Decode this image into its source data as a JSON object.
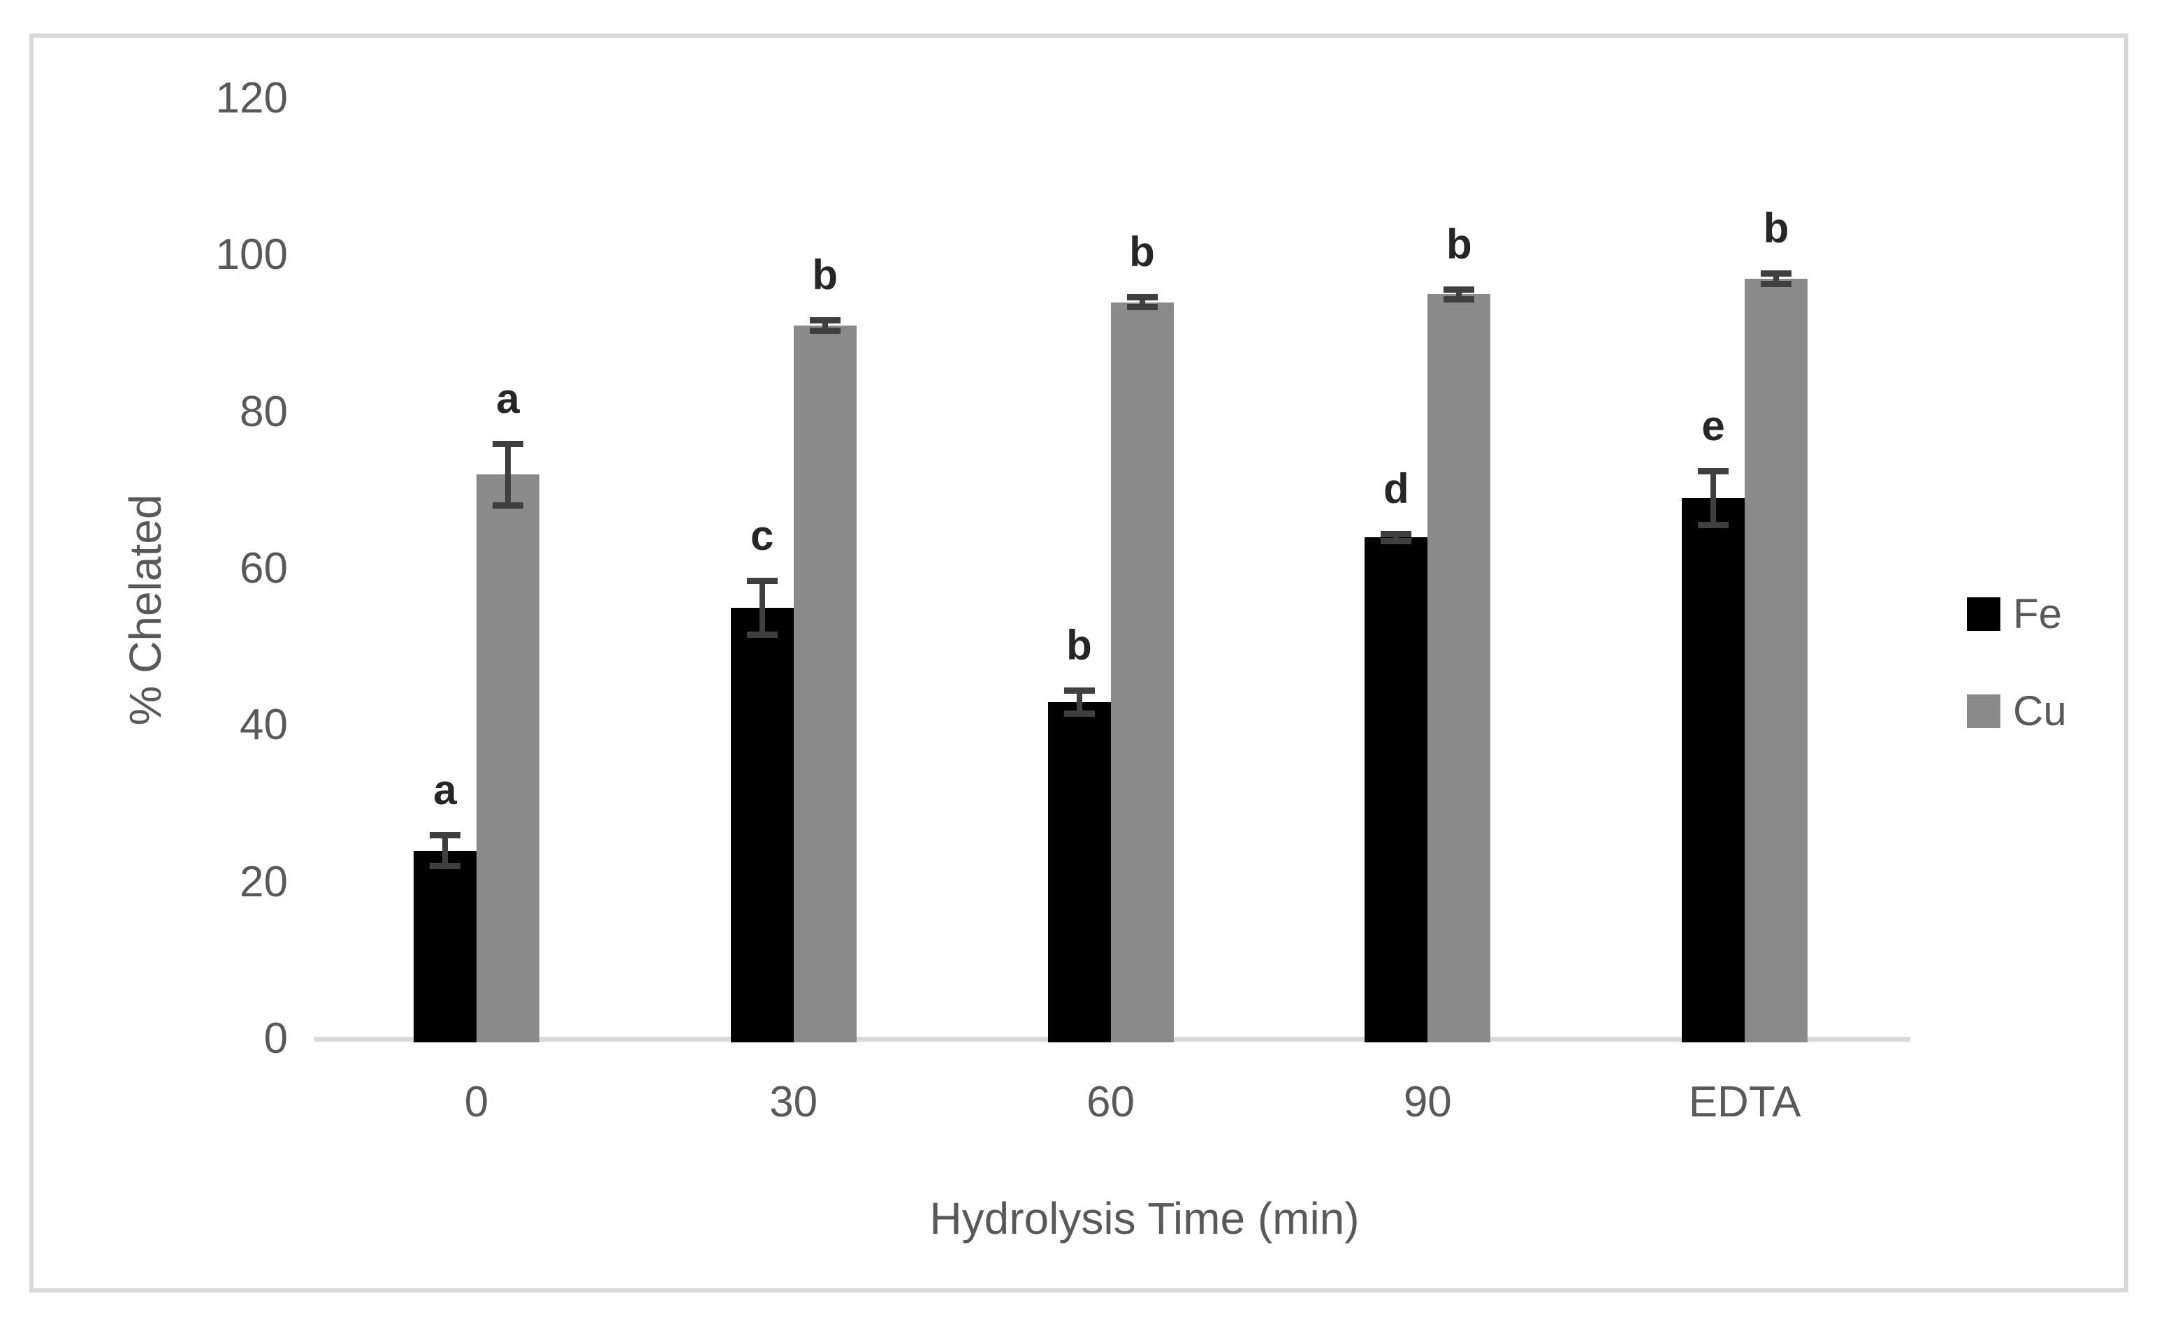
{
  "chart_data": {
    "type": "bar",
    "title": "",
    "xlabel": "Hydrolysis Time (min)",
    "ylabel": "% Chelated",
    "categories": [
      "0",
      "30",
      "60",
      "90",
      "EDTA"
    ],
    "series": [
      {
        "name": "Fe",
        "color": "#000000",
        "values": [
          24,
          55,
          43,
          64,
          69
        ],
        "errors": [
          2,
          3.5,
          1.5,
          0.5,
          3.5
        ],
        "sig_letters": [
          "a",
          "c",
          "b",
          "d",
          "e"
        ]
      },
      {
        "name": "Cu",
        "color": "#8a8a8a",
        "values": [
          72,
          91,
          94,
          95,
          97
        ],
        "errors": [
          4,
          0.7,
          0.7,
          0.7,
          0.7
        ],
        "sig_letters": [
          "a",
          "b",
          "b",
          "b",
          "b"
        ]
      }
    ],
    "ylim": [
      0,
      120
    ],
    "yticks": [
      0,
      20,
      40,
      60,
      80,
      100,
      120
    ],
    "grid": false,
    "legend_position": "right-middle",
    "legend": [
      "Fe",
      "Cu"
    ],
    "error_bar_color": "#3f3f3f",
    "text_color": "#595959",
    "sig_letter_color": "#262626",
    "axis_line_color": "#d9d9d9",
    "frame_border_color": "#d8d8d8"
  }
}
